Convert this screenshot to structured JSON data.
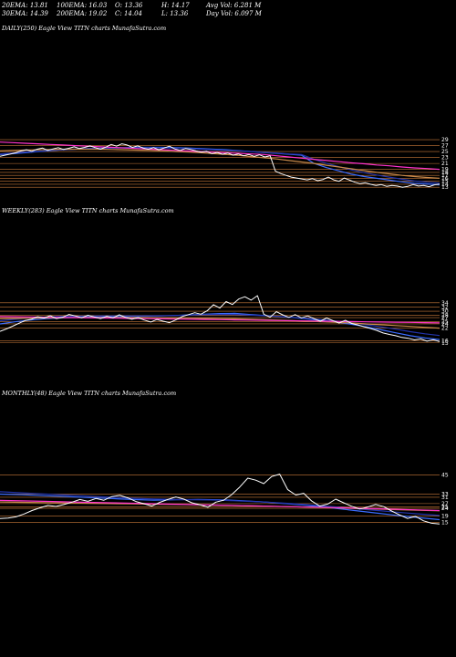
{
  "header": {
    "row1": [
      {
        "text": "20EMA: 13.81",
        "w": 60
      },
      {
        "text": "100EMA: 16.03",
        "w": 64
      },
      {
        "text": "O: 13.36",
        "w": 51
      },
      {
        "text": "H: 14.17",
        "w": 49
      },
      {
        "text": "Avg Vol: 6.281 M",
        "w": 80
      }
    ],
    "row2": [
      {
        "text": "30EMA: 14.39",
        "w": 60
      },
      {
        "text": "200EMA: 19.02",
        "w": 64
      },
      {
        "text": "C: 14.04",
        "w": 51
      },
      {
        "text": "L: 13.36",
        "w": 49
      },
      {
        "text": "Day Vol: 6.097 M",
        "w": 80
      }
    ]
  },
  "panels": [
    {
      "id": "daily",
      "label": "DAILY(250) Eagle  View  TITN  charts MunafaSutra.com"
    },
    {
      "id": "weekly",
      "label": "WEEKLY(283) Eagle  View  TITN  charts MunafaSutra.com"
    },
    {
      "id": "monthly",
      "label": "MONTHLY(48) Eagle  View  TITN  charts MunafaSutra.com"
    }
  ],
  "colors": {
    "price": "#ffffff",
    "ema_blue": "#3a6cff",
    "ema_navy": "#2233aa",
    "ema_magenta": "#ff33cc",
    "ema_brown": "#c98a4a",
    "hline": "#c97a3a",
    "bg": "#000000"
  },
  "chart_data": [
    {
      "type": "line",
      "name": "daily",
      "ylim": [
        10,
        33
      ],
      "yticks": [
        29,
        27,
        25,
        23,
        21,
        19,
        18,
        17,
        16,
        15,
        14,
        13
      ],
      "series": [
        {
          "name": "price",
          "color": "#ffffff",
          "values": [
            23.4,
            23.8,
            24.2,
            24.6,
            25.2,
            25.6,
            25.1,
            25.8,
            26.2,
            25.4,
            25.9,
            26.3,
            25.7,
            26.1,
            26.6,
            26.0,
            26.4,
            26.9,
            26.3,
            25.8,
            26.5,
            27.4,
            26.8,
            27.6,
            27.2,
            26.4,
            26.9,
            26.2,
            25.8,
            26.3,
            25.6,
            26.2,
            26.8,
            25.9,
            25.4,
            26.0,
            25.7,
            25.2,
            24.8,
            25.1,
            24.3,
            24.7,
            24.1,
            24.5,
            23.8,
            24.2,
            23.6,
            24.0,
            23.4,
            23.9,
            23.2,
            23.6,
            18.4,
            17.6,
            17.0,
            16.4,
            16.1,
            15.8,
            15.5,
            15.9,
            15.2,
            15.6,
            16.4,
            15.5,
            15.0,
            16.1,
            15.4,
            14.7,
            14.2,
            14.5,
            14.0,
            13.6,
            13.9,
            13.3,
            13.6,
            13.4,
            13.0,
            13.3,
            13.9,
            13.4,
            13.6,
            13.2,
            13.8,
            14.04
          ]
        },
        {
          "name": "ema20",
          "color": "#3a6cff",
          "values": [
            24.0,
            24.3,
            24.6,
            25.0,
            25.3,
            25.6,
            25.8,
            26.0,
            26.1,
            26.2,
            26.3,
            26.4,
            26.4,
            26.4,
            26.3,
            26.2,
            26.0,
            25.8,
            25.6,
            25.3,
            25.0,
            24.7,
            24.4,
            24.1,
            23.8,
            21.0,
            19.6,
            18.5,
            17.4,
            16.6,
            16.0,
            15.4,
            14.8,
            14.3,
            14.1,
            13.81
          ]
        },
        {
          "name": "ema30",
          "color": "#2233aa",
          "values": [
            24.2,
            24.5,
            24.8,
            25.1,
            25.4,
            25.6,
            25.8,
            26.0,
            26.1,
            26.2,
            26.2,
            26.3,
            26.3,
            26.2,
            26.1,
            26.0,
            25.8,
            25.6,
            25.4,
            25.2,
            25.0,
            24.7,
            24.5,
            24.2,
            24.0,
            22.4,
            21.0,
            19.9,
            18.8,
            17.9,
            17.1,
            16.4,
            15.7,
            15.1,
            14.7,
            14.39
          ]
        },
        {
          "name": "ema100",
          "color": "#c98a4a",
          "values": [
            25.2,
            25.4,
            25.5,
            25.6,
            25.7,
            25.8,
            25.8,
            25.8,
            25.8,
            25.7,
            25.6,
            25.5,
            25.4,
            25.2,
            25.0,
            24.8,
            24.6,
            24.3,
            24.0,
            23.7,
            23.3,
            22.9,
            22.5,
            22.0,
            21.5,
            21.0,
            20.4,
            19.8,
            19.2,
            18.6,
            18.0,
            17.5,
            17.0,
            16.6,
            16.3,
            16.03
          ]
        },
        {
          "name": "ema200",
          "color": "#ff33cc",
          "values": [
            28.2,
            28.0,
            27.8,
            27.6,
            27.4,
            27.2,
            27.0,
            26.8,
            26.6,
            26.4,
            26.2,
            26.0,
            25.8,
            25.6,
            25.4,
            25.2,
            25.0,
            24.8,
            24.6,
            24.4,
            24.2,
            24.0,
            23.6,
            23.2,
            22.8,
            22.4,
            22.0,
            21.6,
            21.2,
            20.9,
            20.5,
            20.2,
            19.8,
            19.5,
            19.3,
            19.02
          ]
        }
      ]
    },
    {
      "type": "line",
      "name": "weekly",
      "ylim": [
        11,
        40
      ],
      "yticks": [
        34,
        32,
        30,
        28,
        27,
        25,
        24,
        22,
        16,
        15
      ],
      "series": [
        {
          "name": "price",
          "color": "#ffffff",
          "values": [
            20.5,
            21.6,
            22.9,
            24.3,
            25.6,
            26.2,
            27.4,
            26.8,
            27.9,
            26.5,
            27.2,
            28.5,
            27.8,
            26.9,
            28.1,
            27.3,
            26.5,
            27.6,
            26.9,
            28.3,
            27.1,
            26.2,
            27.0,
            25.8,
            24.9,
            26.1,
            25.3,
            24.6,
            25.9,
            27.5,
            28.4,
            29.3,
            28.6,
            30.2,
            33.1,
            31.5,
            34.6,
            33.2,
            35.8,
            36.9,
            35.3,
            37.4,
            28.6,
            27.2,
            29.8,
            28.3,
            27.1,
            28.4,
            26.9,
            27.8,
            26.5,
            25.3,
            26.8,
            25.6,
            24.4,
            25.7,
            24.2,
            23.5,
            22.6,
            21.8,
            20.9,
            19.7,
            19.0,
            18.4,
            17.6,
            17.2,
            16.4,
            16.9,
            15.8,
            16.5,
            15.6
          ]
        },
        {
          "name": "ema20",
          "color": "#3a6cff",
          "values": [
            24.0,
            25.0,
            25.8,
            26.4,
            26.8,
            27.0,
            27.2,
            27.4,
            27.5,
            27.6,
            27.7,
            27.8,
            28.0,
            28.3,
            28.6,
            28.9,
            29.0,
            28.5,
            28.0,
            27.5,
            27.0,
            26.3,
            25.6,
            24.8,
            23.8,
            22.6,
            21.2,
            19.8,
            18.4,
            17.3,
            16.6
          ]
        },
        {
          "name": "ema30",
          "color": "#2233aa",
          "values": [
            25.5,
            26.2,
            26.8,
            27.2,
            27.5,
            27.6,
            27.7,
            27.8,
            27.8,
            27.8,
            27.8,
            27.9,
            28.0,
            28.2,
            28.4,
            28.5,
            28.5,
            28.2,
            27.9,
            27.5,
            27.1,
            26.6,
            26.0,
            25.3,
            24.5,
            23.6,
            22.6,
            21.5,
            20.3,
            19.3,
            18.5
          ]
        },
        {
          "name": "ema100",
          "color": "#c98a4a",
          "values": [
            26.5,
            26.6,
            26.7,
            26.8,
            26.9,
            27.0,
            27.0,
            27.0,
            27.0,
            27.0,
            27.0,
            26.9,
            26.8,
            26.7,
            26.6,
            26.5,
            26.4,
            26.2,
            26.0,
            25.8,
            25.6,
            25.3,
            25.0,
            24.7,
            24.4,
            24.0,
            23.6,
            23.2,
            22.8,
            22.4,
            22.0
          ]
        },
        {
          "name": "ema200",
          "color": "#ff33cc",
          "values": [
            27.5,
            27.4,
            27.3,
            27.2,
            27.1,
            27.0,
            26.9,
            26.8,
            26.7,
            26.6,
            26.5,
            26.4,
            26.3,
            26.2,
            26.1,
            26.0,
            25.9,
            25.8,
            25.7,
            25.6,
            25.5,
            25.4,
            25.3,
            25.2,
            25.1,
            25.0,
            24.9,
            24.8,
            24.7,
            24.6,
            24.5
          ]
        }
      ]
    },
    {
      "type": "line",
      "name": "monthly",
      "ylim": [
        5,
        50
      ],
      "yticks": [
        45,
        33,
        31,
        27,
        25,
        24,
        19,
        15
      ],
      "series": [
        {
          "name": "price",
          "color": "#ffffff",
          "values": [
            17.5,
            17.8,
            18.6,
            20.4,
            22.6,
            24.3,
            25.8,
            25.2,
            26.4,
            27.9,
            29.6,
            28.4,
            30.2,
            29.1,
            31.4,
            32.2,
            30.6,
            28.3,
            26.9,
            25.4,
            27.8,
            29.6,
            31.2,
            29.8,
            27.5,
            26.3,
            24.7,
            27.9,
            29.2,
            32.7,
            37.5,
            43.1,
            41.8,
            39.6,
            44.2,
            45.6,
            35.8,
            32.4,
            33.5,
            28.6,
            25.4,
            26.7,
            29.8,
            27.5,
            25.3,
            23.6,
            24.8,
            26.4,
            25.1,
            22.3,
            19.8,
            17.6,
            18.9,
            16.1,
            14.6,
            14.04
          ]
        },
        {
          "name": "ema20",
          "color": "#3a6cff",
          "values": [
            33.0,
            32.6,
            32.0,
            31.4,
            30.8,
            30.2,
            29.6,
            29.2,
            29.4,
            29.6,
            29.4,
            28.8,
            28.0,
            27.0,
            25.8,
            24.4,
            22.8,
            21.2,
            19.6,
            18.2,
            16.8
          ]
        },
        {
          "name": "ema30",
          "color": "#2233aa",
          "values": [
            34.5,
            33.8,
            33.1,
            32.4,
            31.7,
            31.0,
            30.4,
            29.9,
            29.6,
            29.4,
            29.1,
            28.6,
            28.0,
            27.2,
            26.3,
            25.2,
            24.0,
            22.8,
            21.6,
            20.5,
            19.5
          ]
        },
        {
          "name": "ema100",
          "color": "#c98a4a",
          "values": [
            28.0,
            27.8,
            27.6,
            27.4,
            27.2,
            27.0,
            26.8,
            26.6,
            26.4,
            26.2,
            26.0,
            25.7,
            25.4,
            25.1,
            24.8,
            24.4,
            24.0,
            23.6,
            23.2,
            22.8,
            22.4
          ]
        },
        {
          "name": "ema200",
          "color": "#ff33cc",
          "values": [
            29.0,
            28.7,
            28.4,
            28.1,
            27.8,
            27.5,
            27.2,
            26.9,
            26.6,
            26.3,
            26.0,
            25.7,
            25.4,
            25.1,
            24.8,
            24.5,
            24.2,
            23.8,
            23.4,
            23.0,
            22.6
          ]
        }
      ]
    }
  ]
}
